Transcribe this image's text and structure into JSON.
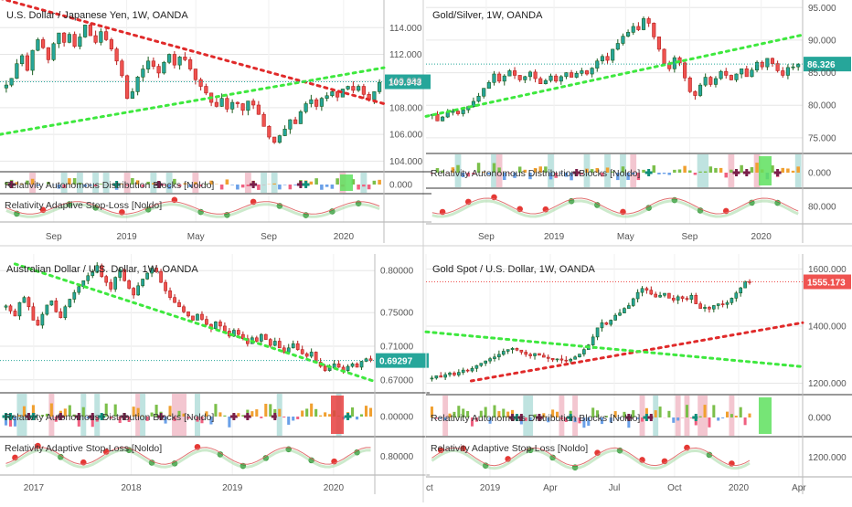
{
  "colors": {
    "up": "#26a69a",
    "down": "#ef5350",
    "upDark": "#1b5e20",
    "downDark": "#b71c1c",
    "trendGreen": "#3ee83e",
    "trendRed": "#e02a2a",
    "grid": "#e6e6e6",
    "axisText": "#555555",
    "tagBlue": "#26a69a",
    "tagRed": "#ef5350"
  },
  "chart_data": [
    {
      "type": "candlestick",
      "title": "U.S. Dollar / Japanese Yen, 1W, OANDA",
      "price_ticks": [
        "114.000",
        "112.000",
        "110.000",
        "108.000",
        "106.000",
        "104.000"
      ],
      "price_tick_values": [
        114,
        112,
        110,
        108,
        106,
        104
      ],
      "ylim": [
        103.2,
        115.8
      ],
      "last_price": "109.943",
      "last_price_value": 109.943,
      "tag_color": "blue",
      "ind1_label": "Relativity Autonomous Distribution Blocks [Noldo]",
      "ind1_tick": "0.000",
      "ind2_label": "Relativity Adaptive Stop-Loss [Noldo]",
      "x_ticks": [
        "Sep",
        "2019",
        "May",
        "Sep",
        "2020"
      ],
      "x_tick_pos": [
        0.14,
        0.33,
        0.51,
        0.7,
        0.895
      ],
      "series": [
        109.7,
        110.2,
        111.3,
        111.9,
        110.8,
        112.3,
        113.1,
        112.5,
        111.6,
        112.8,
        113.6,
        112.9,
        113.5,
        112.6,
        113.3,
        114.2,
        113.4,
        112.9,
        113.7,
        113.1,
        112.4,
        111.5,
        110.4,
        108.7,
        109.2,
        110.3,
        110.9,
        111.5,
        111.1,
        110.6,
        111.4,
        112.0,
        111.2,
        111.8,
        111.6,
        110.9,
        110.1,
        109.6,
        109.1,
        108.4,
        108.1,
        108.7,
        107.9,
        108.4,
        108.3,
        107.8,
        108.5,
        108.2,
        107.5,
        106.6,
        105.8,
        105.4,
        105.9,
        106.4,
        107.1,
        106.8,
        107.7,
        108.3,
        108.6,
        108.1,
        108.7,
        108.9,
        109.2,
        108.8,
        109.4,
        109.6,
        109.3,
        109.6,
        109.0,
        108.6,
        109.2,
        109.9
      ],
      "trend_red": {
        "from": [
          0.0,
          116.2
        ],
        "to": [
          1.0,
          108.3
        ]
      },
      "trend_green": {
        "from": [
          0.0,
          106.0
        ],
        "to": [
          1.0,
          111.0
        ]
      }
    },
    {
      "type": "candlestick",
      "title": "Gold/Silver, 1W, OANDA",
      "price_ticks": [
        "95.000",
        "90.000",
        "85.000",
        "80.000",
        "75.000"
      ],
      "price_tick_values": [
        95,
        90,
        85,
        80,
        75
      ],
      "ylim": [
        72.6,
        95.6
      ],
      "last_price": "86.326",
      "last_price_value": 86.326,
      "tag_color": "blue",
      "ind1_label": "Relativity Autonomous Distribution Blocks [Noldo]",
      "ind1_tick": "0.000",
      "ind2_label": "",
      "ind2_tick": "80.000",
      "x_ticks": [
        "Sep",
        "2019",
        "May",
        "Sep",
        "2020"
      ],
      "x_tick_pos": [
        0.16,
        0.34,
        0.53,
        0.7,
        0.89
      ],
      "series": [
        78.6,
        77.6,
        78.2,
        78.9,
        79.1,
        78.7,
        79.3,
        79.8,
        80.6,
        81.4,
        82.6,
        83.5,
        84.8,
        83.7,
        84.5,
        85.3,
        84.6,
        83.9,
        84.4,
        85.1,
        84.1,
        83.3,
        83.8,
        84.5,
        83.7,
        84.4,
        85.0,
        84.3,
        84.9,
        85.3,
        84.8,
        85.7,
        86.8,
        87.5,
        86.9,
        88.6,
        89.5,
        90.6,
        91.2,
        92.1,
        91.6,
        93.3,
        92.6,
        90.5,
        88.6,
        86.4,
        85.6,
        87.3,
        86.5,
        84.2,
        82.1,
        81.5,
        83.1,
        84.3,
        83.2,
        84.1,
        85.2,
        84.6,
        83.9,
        84.8,
        85.6,
        84.4,
        85.4,
        86.6,
        85.9,
        87.2,
        86.4,
        85.3,
        84.6,
        85.8,
        85.9,
        86.3
      ],
      "trend_green": {
        "from": [
          0.0,
          78.3
        ],
        "to": [
          1.0,
          90.8
        ]
      }
    },
    {
      "type": "candlestick",
      "title": "Australian Dollar / U.S. Dollar, 1W, OANDA",
      "price_ticks": [
        "0.80000",
        "0.75000",
        "0.71000",
        "0.67000"
      ],
      "price_tick_values": [
        0.8,
        0.75,
        0.71,
        0.67
      ],
      "ylim": [
        0.6545,
        0.8155
      ],
      "last_price": "0.69297",
      "last_price_value": 0.69297,
      "tag_color": "blue",
      "ind1_label": "Relativity Autonomous Distribution Blocks [Noldo]",
      "ind1_tick": "0.00000",
      "ind2_label": "Relativity Adaptive Stop-Loss [Noldo]",
      "ind2_tick": "0.80000",
      "x_ticks": [
        "2017",
        "2018",
        "2019",
        "2020"
      ],
      "x_tick_pos": [
        0.09,
        0.35,
        0.62,
        0.89
      ],
      "series": [
        0.758,
        0.752,
        0.746,
        0.762,
        0.768,
        0.757,
        0.741,
        0.735,
        0.748,
        0.759,
        0.764,
        0.751,
        0.744,
        0.757,
        0.766,
        0.774,
        0.781,
        0.788,
        0.794,
        0.798,
        0.806,
        0.793,
        0.786,
        0.778,
        0.792,
        0.801,
        0.788,
        0.779,
        0.771,
        0.782,
        0.79,
        0.797,
        0.803,
        0.799,
        0.786,
        0.776,
        0.768,
        0.762,
        0.757,
        0.751,
        0.746,
        0.741,
        0.748,
        0.742,
        0.736,
        0.731,
        0.739,
        0.734,
        0.728,
        0.722,
        0.729,
        0.724,
        0.719,
        0.713,
        0.72,
        0.716,
        0.724,
        0.718,
        0.711,
        0.716,
        0.708,
        0.703,
        0.708,
        0.713,
        0.706,
        0.701,
        0.698,
        0.703,
        0.691,
        0.686,
        0.681,
        0.684,
        0.689,
        0.685,
        0.681,
        0.686,
        0.689,
        0.685,
        0.692,
        0.695,
        0.693
      ],
      "trend_green": {
        "from": [
          0.04,
          0.808
        ],
        "to": [
          1.0,
          0.668
        ]
      }
    },
    {
      "type": "candlestick",
      "title": "Gold Spot / U.S. Dollar, 1W, OANDA",
      "price_ticks": [
        "1600.000",
        "1400.000",
        "1200.000"
      ],
      "price_tick_values": [
        1600,
        1400,
        1200
      ],
      "ylim": [
        1160,
        1640
      ],
      "last_price": "1555.173",
      "last_price_value": 1555.173,
      "tag_color": "red",
      "ind1_label": "Relativity Autonomous Distribution Blocks [Noldo]",
      "ind1_tick": "0.000",
      "ind2_label": "Relativity Adaptive Stop-Loss [Noldo]",
      "ind2_tick": "1200.000",
      "x_ticks": [
        "ct",
        "2019",
        "Apr",
        "Jul",
        "Oct",
        "2020",
        "Apr"
      ],
      "x_tick_pos": [
        0.0,
        0.17,
        0.33,
        0.5,
        0.66,
        0.83,
        0.99
      ],
      "bars_fraction": 0.87,
      "series": [
        1218,
        1226,
        1221,
        1230,
        1236,
        1229,
        1238,
        1246,
        1243,
        1252,
        1262,
        1270,
        1278,
        1286,
        1292,
        1301,
        1312,
        1318,
        1322,
        1316,
        1309,
        1301,
        1296,
        1304,
        1298,
        1291,
        1287,
        1282,
        1285,
        1281,
        1278,
        1284,
        1292,
        1302,
        1318,
        1334,
        1362,
        1394,
        1412,
        1406,
        1421,
        1438,
        1446,
        1462,
        1472,
        1496,
        1518,
        1532,
        1526,
        1512,
        1502,
        1508,
        1515,
        1498,
        1491,
        1503,
        1497,
        1494,
        1508,
        1478,
        1462,
        1466,
        1460,
        1472,
        1478,
        1476,
        1482,
        1498,
        1516,
        1534,
        1556,
        1555
      ],
      "trend_red": {
        "from": [
          0.12,
          1208
        ],
        "to": [
          1.0,
          1412
        ]
      },
      "trend_green": {
        "from": [
          0.0,
          1380
        ],
        "to": [
          1.0,
          1258
        ]
      }
    }
  ]
}
